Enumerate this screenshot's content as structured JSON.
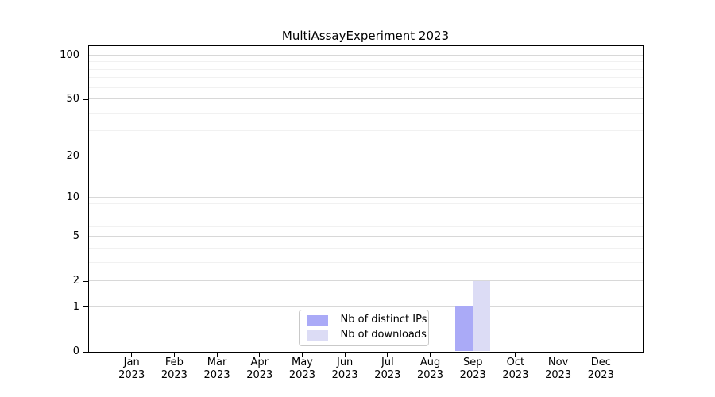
{
  "chart_data": {
    "type": "bar",
    "title": "MultiAssayExperiment 2023",
    "categories": [
      "Jan",
      "Feb",
      "Mar",
      "Apr",
      "May",
      "Jun",
      "Jul",
      "Aug",
      "Sep",
      "Oct",
      "Nov",
      "Dec"
    ],
    "category_year": "2023",
    "series": [
      {
        "name": "Nb of distinct IPs",
        "color": "#aaaaf7",
        "values": [
          0,
          0,
          0,
          0,
          0,
          0,
          0,
          0,
          1,
          0,
          0,
          0
        ]
      },
      {
        "name": "Nb of downloads",
        "color": "#dcdcf5",
        "values": [
          0,
          0,
          0,
          0,
          0,
          0,
          0,
          0,
          2,
          0,
          0,
          0
        ]
      }
    ],
    "xlabel": "",
    "ylabel": "",
    "yscale": "log1p",
    "ylim": [
      0,
      100
    ],
    "yticks": [
      0,
      1,
      2,
      5,
      10,
      20,
      50,
      100
    ],
    "minor_yticks": [
      3,
      4,
      6,
      7,
      8,
      9,
      30,
      40,
      60,
      70,
      80,
      90
    ],
    "grid": "horizontal",
    "legend_position": "inside-bottom-center",
    "colors": {
      "background": "#ffffff",
      "spine": "#000000",
      "text": "#000000",
      "major_grid": "#d8d8d8",
      "minor_grid": "#f1f1f1",
      "legend_border": "#c9c9c9"
    }
  }
}
